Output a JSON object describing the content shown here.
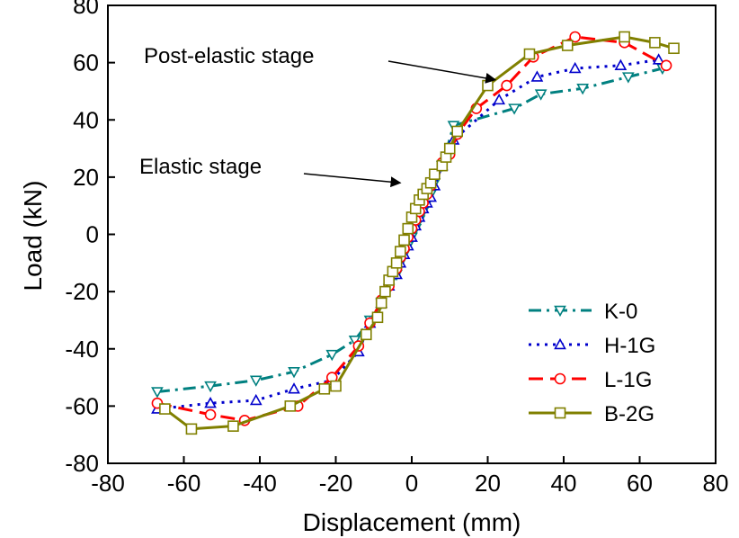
{
  "chart_data": {
    "type": "line",
    "xlabel": "Displacement (mm)",
    "ylabel": "Load (kN)",
    "xlim": [
      -80,
      80
    ],
    "ylim": [
      -80,
      80
    ],
    "xticks": [
      -80,
      -60,
      -40,
      -20,
      0,
      20,
      40,
      60,
      80
    ],
    "yticks": [
      -80,
      -60,
      -40,
      -20,
      0,
      20,
      40,
      60,
      80
    ],
    "grid": false,
    "legend_position": "bottom-right",
    "annotations": [
      {
        "text": "Post-elastic stage",
        "point": [
          22,
          54
        ]
      },
      {
        "text": "Elastic stage",
        "point": [
          -3,
          18
        ]
      }
    ],
    "series": [
      {
        "name": "K-0",
        "color": "#008080",
        "dash": "dash-dot",
        "marker": "triangle-down",
        "points": [
          [
            -67,
            -55
          ],
          [
            -53,
            -53
          ],
          [
            -41,
            -51
          ],
          [
            -31,
            -48
          ],
          [
            -21,
            -42
          ],
          [
            -15,
            -37
          ],
          [
            -11,
            -30
          ],
          [
            -8,
            -24
          ],
          [
            -6,
            -19
          ],
          [
            -4,
            -14
          ],
          [
            -3,
            -10
          ],
          [
            -2,
            -7
          ],
          [
            -1,
            -4
          ],
          [
            0,
            -1
          ],
          [
            1,
            2
          ],
          [
            2,
            5
          ],
          [
            3,
            8
          ],
          [
            4,
            11
          ],
          [
            5,
            14
          ],
          [
            6,
            18
          ],
          [
            8,
            24
          ],
          [
            11,
            38
          ],
          [
            27,
            44
          ],
          [
            34,
            49
          ],
          [
            45,
            51
          ],
          [
            57,
            55
          ],
          [
            66,
            58
          ]
        ]
      },
      {
        "name": "H-1G",
        "color": "#0000cc",
        "dash": "dot",
        "marker": "triangle-up",
        "points": [
          [
            -67,
            -61
          ],
          [
            -53,
            -59
          ],
          [
            -41,
            -58
          ],
          [
            -31,
            -54
          ],
          [
            -21,
            -51
          ],
          [
            -14,
            -41
          ],
          [
            -11,
            -31
          ],
          [
            -8,
            -24
          ],
          [
            -6,
            -18
          ],
          [
            -4,
            -14
          ],
          [
            -3,
            -10
          ],
          [
            -2,
            -7
          ],
          [
            -1,
            -4
          ],
          [
            0,
            -1
          ],
          [
            1,
            3
          ],
          [
            2,
            6
          ],
          [
            3,
            9
          ],
          [
            4,
            11
          ],
          [
            5,
            13
          ],
          [
            6,
            17
          ],
          [
            8,
            24
          ],
          [
            11,
            33
          ],
          [
            23,
            47
          ],
          [
            33,
            55
          ],
          [
            43,
            58
          ],
          [
            55,
            59
          ],
          [
            65,
            61
          ]
        ]
      },
      {
        "name": "L-1G",
        "color": "#ff0000",
        "dash": "dash",
        "marker": "circle",
        "points": [
          [
            -67,
            -59
          ],
          [
            -53,
            -63
          ],
          [
            -44,
            -65
          ],
          [
            -30,
            -60
          ],
          [
            -21,
            -50
          ],
          [
            -14,
            -39
          ],
          [
            -11,
            -31
          ],
          [
            -8,
            -23
          ],
          [
            -6,
            -18
          ],
          [
            -4,
            -12
          ],
          [
            -3,
            -8
          ],
          [
            -2,
            -5
          ],
          [
            -1,
            -1
          ],
          [
            0,
            2
          ],
          [
            1,
            5
          ],
          [
            2,
            8
          ],
          [
            3,
            11
          ],
          [
            4,
            14
          ],
          [
            5,
            17
          ],
          [
            6,
            21
          ],
          [
            8,
            25
          ],
          [
            10,
            28
          ],
          [
            12,
            35
          ],
          [
            17,
            44
          ],
          [
            25,
            52
          ],
          [
            32,
            62
          ],
          [
            43,
            69
          ],
          [
            56,
            67
          ],
          [
            67,
            59
          ]
        ]
      },
      {
        "name": "B-2G",
        "color": "#808000",
        "dash": "solid",
        "marker": "square",
        "points": [
          [
            -65,
            -61
          ],
          [
            -58,
            -68
          ],
          [
            -47,
            -67
          ],
          [
            -32,
            -60
          ],
          [
            -23,
            -54
          ],
          [
            -20,
            -53
          ],
          [
            -12,
            -35
          ],
          [
            -9,
            -29
          ],
          [
            -8,
            -24
          ],
          [
            -7,
            -20
          ],
          [
            -6,
            -16
          ],
          [
            -5,
            -13
          ],
          [
            -4,
            -10
          ],
          [
            -3,
            -6
          ],
          [
            -2,
            -2
          ],
          [
            -1,
            2
          ],
          [
            0,
            6
          ],
          [
            1,
            9
          ],
          [
            2,
            12
          ],
          [
            3,
            14
          ],
          [
            4,
            16
          ],
          [
            5,
            18
          ],
          [
            6,
            21
          ],
          [
            8,
            24
          ],
          [
            9,
            27
          ],
          [
            10,
            30
          ],
          [
            12,
            36
          ],
          [
            20,
            52
          ],
          [
            31,
            63
          ],
          [
            41,
            66
          ],
          [
            56,
            69
          ],
          [
            64,
            67
          ],
          [
            69,
            65
          ]
        ]
      }
    ]
  }
}
